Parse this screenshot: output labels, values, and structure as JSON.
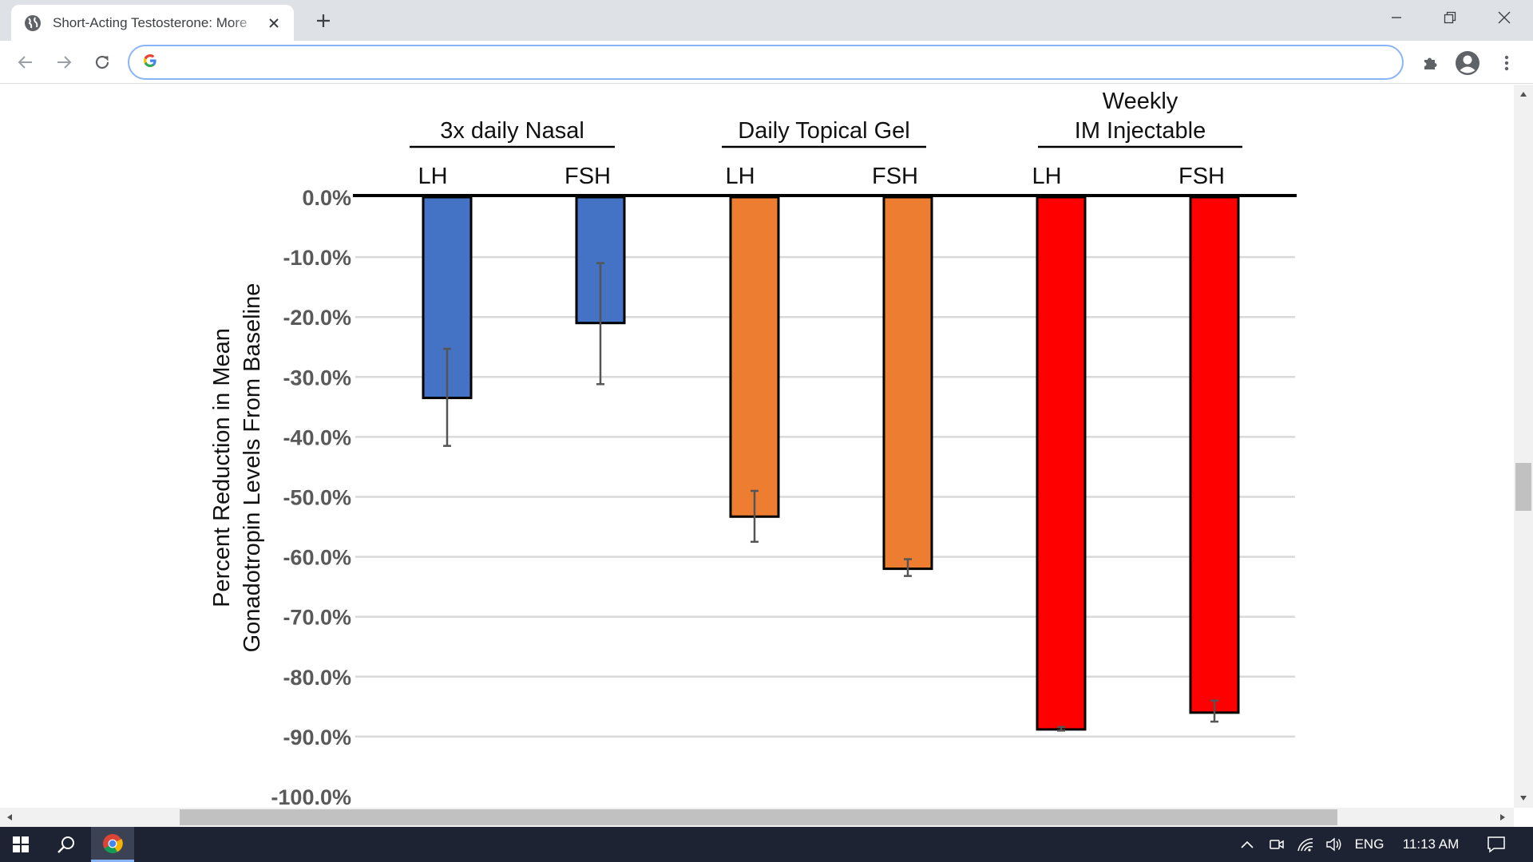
{
  "browser": {
    "tab_title": "Short-Acting Testosterone: More",
    "address_value": "",
    "colors": {
      "tabbar": "#dee1e6",
      "omnibox_border": "#8ab4f8"
    }
  },
  "taskbar": {
    "language": "ENG",
    "time": "11:13 AM",
    "background": "#1d2332"
  },
  "chart_data": {
    "type": "bar",
    "ylabel_line1": "Percent Reduction in Mean",
    "ylabel_line2": "Gonadotropin Levels From Baseline",
    "ylim": [
      -100,
      0
    ],
    "y_ticks": [
      "0.0%",
      "-10.0%",
      "-20.0%",
      "-30.0%",
      "-40.0%",
      "-50.0%",
      "-60.0%",
      "-70.0%",
      "-80.0%",
      "-90.0%",
      "-100.0%"
    ],
    "grid": true,
    "groups": [
      {
        "label_lines": [
          "3x daily Nasal"
        ],
        "color": "#4472c4"
      },
      {
        "label_lines": [
          "Daily Topical Gel"
        ],
        "color": "#ed7d31"
      },
      {
        "label_lines": [
          "Weekly",
          "IM Injectable"
        ],
        "color": "#ff0000"
      }
    ],
    "categories": [
      "LH",
      "FSH",
      "LH",
      "FSH",
      "LH",
      "FSH"
    ],
    "values": [
      -33.5,
      -21,
      -53.3,
      -62,
      -88.8,
      -86
    ],
    "error_low": [
      -41.5,
      -31.2,
      -57.5,
      -63.2,
      -89,
      -87.5
    ],
    "error_high": [
      -25.3,
      -11,
      -49,
      -60.4,
      -88.4,
      -84
    ],
    "group_index": [
      0,
      0,
      1,
      1,
      2,
      2
    ]
  }
}
